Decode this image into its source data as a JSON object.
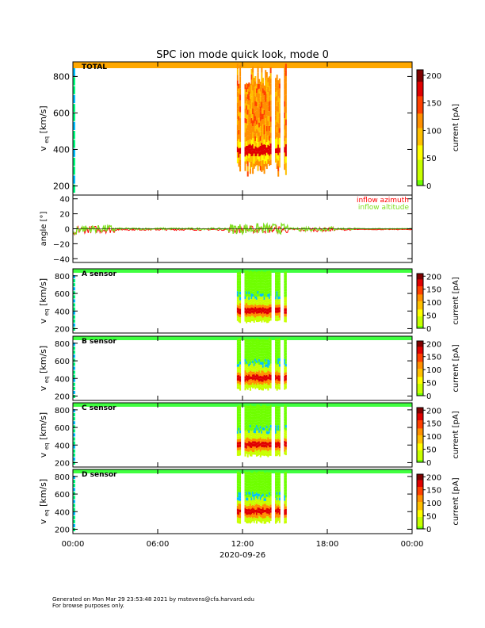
{
  "chart_data": {
    "type": "heatmap",
    "title": "SPC ion mode quick look, mode 0",
    "x_ticks": [
      "00:00",
      "06:00",
      "12:00",
      "18:00",
      "00:00"
    ],
    "x_range_hours": [
      0,
      24
    ],
    "date_label": "2020-09-26",
    "panels": [
      {
        "id": "total",
        "type": "heatmap",
        "label": "TOTAL",
        "ylabel_main": "v",
        "ylabel_sub": "eq",
        "ylabel_unit": "[km/s]",
        "y_ticks": [
          "800",
          "600",
          "400",
          "200"
        ],
        "y_tick_values": [
          800,
          600,
          400,
          200
        ],
        "ylim": [
          150,
          880
        ],
        "colorbar": {
          "label": "current [pA]",
          "ticks": [
            "200",
            "150",
            "100",
            "50",
            "0"
          ],
          "tick_values": [
            200,
            150,
            100,
            50,
            0
          ],
          "range": [
            0,
            210
          ]
        },
        "data_intervals_hours": [
          [
            11.6,
            11.8
          ],
          [
            12.1,
            15.1
          ]
        ]
      },
      {
        "id": "angle",
        "type": "line",
        "ylabel": "angle [°]",
        "y_ticks": [
          "40",
          "20",
          "0",
          "−20",
          "−40"
        ],
        "y_tick_values": [
          40,
          20,
          0,
          -20,
          -40
        ],
        "ylim": [
          -45,
          45
        ],
        "legend_position": "top-right",
        "series": [
          {
            "name": "inflow azimuth",
            "color": "#ff0000",
            "mean_deg": -1
          },
          {
            "name": "inflow altitude",
            "color": "#7fdf20",
            "mean_deg": 0
          }
        ]
      },
      {
        "id": "sensor_a",
        "type": "heatmap",
        "label": "A sensor",
        "ylabel_main": "v",
        "ylabel_sub": "eq",
        "ylabel_unit": "[km/s]",
        "y_ticks": [
          "800",
          "600",
          "400",
          "200"
        ],
        "y_tick_values": [
          800,
          600,
          400,
          200
        ],
        "ylim": [
          150,
          880
        ],
        "colorbar": {
          "label": "current [pA]",
          "ticks": [
            "200",
            "150",
            "100",
            "50",
            "0"
          ],
          "tick_values": [
            200,
            150,
            100,
            50,
            0
          ],
          "range": [
            0,
            210
          ]
        },
        "peak_velocity_kms": 390
      },
      {
        "id": "sensor_b",
        "type": "heatmap",
        "label": "B sensor",
        "ylabel_main": "v",
        "ylabel_sub": "eq",
        "ylabel_unit": "[km/s]",
        "y_ticks": [
          "800",
          "600",
          "400",
          "200"
        ],
        "y_tick_values": [
          800,
          600,
          400,
          200
        ],
        "ylim": [
          150,
          880
        ],
        "colorbar": {
          "label": "current [pA]",
          "ticks": [
            "200",
            "150",
            "100",
            "50",
            "0"
          ],
          "tick_values": [
            200,
            150,
            100,
            50,
            0
          ],
          "range": [
            0,
            210
          ]
        },
        "peak_velocity_kms": 390
      },
      {
        "id": "sensor_c",
        "type": "heatmap",
        "label": "C sensor",
        "ylabel_main": "v",
        "ylabel_sub": "eq",
        "ylabel_unit": "[km/s]",
        "y_ticks": [
          "800",
          "600",
          "400",
          "200"
        ],
        "y_tick_values": [
          800,
          600,
          400,
          200
        ],
        "ylim": [
          150,
          880
        ],
        "colorbar": {
          "label": "current [pA]",
          "ticks": [
            "200",
            "150",
            "100",
            "50",
            "0"
          ],
          "tick_values": [
            200,
            150,
            100,
            50,
            0
          ],
          "range": [
            0,
            210
          ]
        },
        "peak_velocity_kms": 390
      },
      {
        "id": "sensor_d",
        "type": "heatmap",
        "label": "D sensor",
        "ylabel_main": "v",
        "ylabel_sub": "eq",
        "ylabel_unit": "[km/s]",
        "y_ticks": [
          "800",
          "600",
          "400",
          "200"
        ],
        "y_tick_values": [
          800,
          600,
          400,
          200
        ],
        "ylim": [
          150,
          880
        ],
        "colorbar": {
          "label": "current [pA]",
          "ticks": [
            "200",
            "150",
            "100",
            "50",
            "0"
          ],
          "tick_values": [
            200,
            150,
            100,
            50,
            0
          ],
          "range": [
            0,
            210
          ]
        },
        "peak_velocity_kms": 390
      }
    ]
  },
  "footer": {
    "line1": "Generated on Mon Mar 29 23:53:48 2021 by mstevens@cfa.harvard.edu",
    "line2": "For browse purposes only."
  }
}
